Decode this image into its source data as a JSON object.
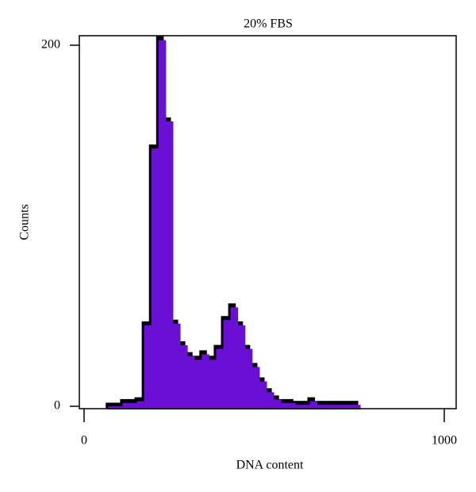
{
  "chart_data": {
    "type": "histogram",
    "title": "20% FBS",
    "xlabel": "DNA content",
    "ylabel": "Counts",
    "bins": [
      60,
      80,
      100,
      120,
      140,
      160,
      180,
      200,
      220,
      240,
      260,
      280,
      300,
      320,
      340,
      360,
      380,
      400,
      420,
      440,
      460,
      480,
      500,
      520,
      540,
      560,
      580,
      600,
      620,
      640,
      660,
      680,
      700,
      720,
      740,
      760
    ],
    "values": [
      2,
      2,
      4,
      4,
      5,
      47,
      145,
      205,
      160,
      48,
      36,
      30,
      28,
      31,
      28,
      34,
      50,
      57,
      47,
      34,
      24,
      16,
      10,
      6,
      4,
      4,
      3,
      3,
      5,
      3,
      3,
      3,
      3,
      3,
      3
    ],
    "color": "#6a0fd6",
    "edge_color": "#000000",
    "xlim": [
      0,
      1000
    ],
    "xticks": [
      0,
      1000
    ],
    "ylim": [
      0,
      200
    ],
    "yticks": [
      0,
      200
    ]
  }
}
